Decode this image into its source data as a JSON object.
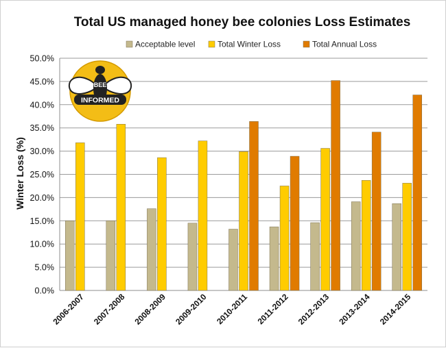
{
  "chart_data": {
    "type": "bar",
    "title": "Total US managed honey bee colonies Loss Estimates",
    "xlabel": "",
    "ylabel": "Winter Loss (%)",
    "ylim": [
      0,
      50
    ],
    "y_tick_labels": [
      "0.0%",
      "5.0%",
      "10.0%",
      "15.0%",
      "20.0%",
      "25.0%",
      "30.0%",
      "35.0%",
      "40.0%",
      "45.0%",
      "50.0%"
    ],
    "categories": [
      "2006-2007",
      "2007-2008",
      "2008-2009",
      "2009-2010",
      "2010-2011",
      "2011-2012",
      "2012-2013",
      "2013-2014",
      "2014-2015"
    ],
    "grid": true,
    "legend_position": "top",
    "series": [
      {
        "name": "Acceptable level",
        "color": "#c4b98d",
        "values": [
          15.0,
          15.0,
          17.6,
          14.5,
          13.2,
          13.7,
          14.6,
          19.1,
          18.7
        ]
      },
      {
        "name": "Total Winter Loss",
        "color": "#ffcc00",
        "values": [
          31.8,
          35.8,
          28.6,
          32.2,
          29.9,
          22.5,
          30.6,
          23.7,
          23.1
        ]
      },
      {
        "name": "Total Annual Loss",
        "color": "#e07b00",
        "values": [
          null,
          null,
          null,
          null,
          36.4,
          28.9,
          45.2,
          34.1,
          42.1
        ]
      }
    ]
  },
  "logo": {
    "name": "bee-informed-logo",
    "text_top": "BEE",
    "text_bottom": "INFORMED"
  }
}
